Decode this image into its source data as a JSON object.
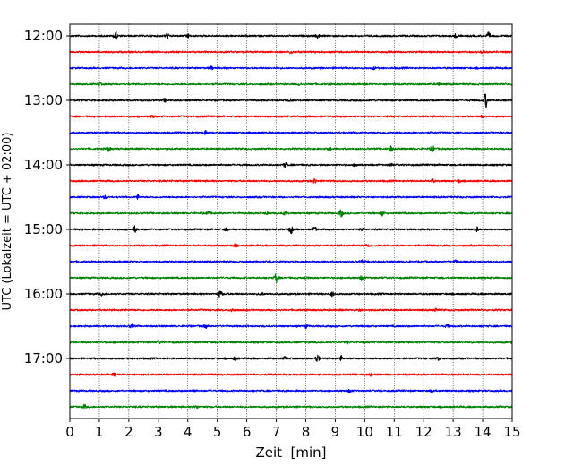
{
  "chart_data": {
    "type": "line",
    "subtype": "helicorder-seismogram",
    "xlabel": "Zeit  [min]",
    "ylabel": "UTC (Lokalzeit = UTC + 02:00)",
    "xlim": [
      0,
      15
    ],
    "x_ticks": [
      0,
      1,
      2,
      3,
      4,
      5,
      6,
      7,
      8,
      9,
      10,
      11,
      12,
      13,
      14,
      15
    ],
    "x_tick_labels": [
      "0",
      "1",
      "2",
      "3",
      "4",
      "5",
      "6",
      "7",
      "8",
      "9",
      "10",
      "11",
      "12",
      "13",
      "14",
      "15"
    ],
    "y_tick_labels": [
      "12:00",
      "13:00",
      "14:00",
      "15:00",
      "16:00",
      "17:00"
    ],
    "grid": "vertical dotted lines at each minute",
    "trace_interval_minutes": 15,
    "traces": [
      {
        "start": "12:00",
        "color": "#000000",
        "events": [
          [
            1.55,
            1.0
          ],
          [
            3.3,
            0.6
          ],
          [
            4.0,
            0.45
          ],
          [
            8.4,
            0.45
          ],
          [
            14.2,
            0.7
          ],
          [
            13.1,
            0.4
          ]
        ]
      },
      {
        "start": "12:15",
        "color": "#ff0000",
        "events": [
          [
            14.0,
            0.4
          ],
          [
            7.5,
            0.3
          ]
        ]
      },
      {
        "start": "12:30",
        "color": "#0000ff",
        "events": [
          [
            4.8,
            0.35
          ],
          [
            10.3,
            0.3
          ]
        ]
      },
      {
        "start": "12:45",
        "color": "#008000",
        "events": [
          [
            1.0,
            0.3
          ],
          [
            7.8,
            0.3
          ],
          [
            12.5,
            0.3
          ]
        ]
      },
      {
        "start": "13:00",
        "color": "#000000",
        "events": [
          [
            14.1,
            1.8
          ],
          [
            3.2,
            0.35
          ],
          [
            7.5,
            0.3
          ]
        ]
      },
      {
        "start": "13:15",
        "color": "#ff0000",
        "events": [
          [
            2.8,
            0.4
          ],
          [
            14.0,
            0.3
          ]
        ]
      },
      {
        "start": "13:30",
        "color": "#0000ff",
        "events": [
          [
            4.6,
            0.45
          ],
          [
            10.7,
            0.3
          ]
        ]
      },
      {
        "start": "13:45",
        "color": "#008000",
        "events": [
          [
            1.3,
            0.6
          ],
          [
            10.9,
            0.6
          ],
          [
            12.3,
            0.7
          ],
          [
            8.8,
            0.35
          ]
        ]
      },
      {
        "start": "14:00",
        "color": "#000000",
        "events": [
          [
            7.3,
            0.45
          ],
          [
            9.7,
            0.35
          ],
          [
            10.9,
            0.35
          ]
        ]
      },
      {
        "start": "14:15",
        "color": "#ff0000",
        "events": [
          [
            8.3,
            0.6
          ],
          [
            12.3,
            0.4
          ],
          [
            13.2,
            0.35
          ]
        ]
      },
      {
        "start": "14:30",
        "color": "#0000ff",
        "events": [
          [
            1.2,
            0.35
          ],
          [
            2.3,
            0.5
          ]
        ]
      },
      {
        "start": "14:45",
        "color": "#008000",
        "events": [
          [
            4.7,
            0.55
          ],
          [
            7.3,
            0.45
          ],
          [
            9.2,
            0.8
          ],
          [
            10.6,
            0.6
          ],
          [
            6.7,
            0.3
          ]
        ]
      },
      {
        "start": "15:00",
        "color": "#000000",
        "events": [
          [
            2.2,
            0.7
          ],
          [
            7.5,
            0.9
          ],
          [
            8.3,
            0.55
          ],
          [
            13.8,
            0.75
          ],
          [
            5.3,
            0.35
          ],
          [
            9.9,
            0.3
          ]
        ]
      },
      {
        "start": "15:15",
        "color": "#ff0000",
        "events": [
          [
            5.6,
            0.35
          ],
          [
            10.1,
            0.35
          ]
        ]
      },
      {
        "start": "15:30",
        "color": "#0000ff",
        "events": [
          [
            6.8,
            0.3
          ],
          [
            9.9,
            0.3
          ],
          [
            13.1,
            0.3
          ]
        ]
      },
      {
        "start": "15:45",
        "color": "#008000",
        "events": [
          [
            7.0,
            1.1
          ],
          [
            9.9,
            0.6
          ],
          [
            8.0,
            0.35
          ]
        ]
      },
      {
        "start": "16:00",
        "color": "#000000",
        "events": [
          [
            5.1,
            0.8
          ],
          [
            8.9,
            0.5
          ],
          [
            1.1,
            0.3
          ],
          [
            6.5,
            0.3
          ]
        ]
      },
      {
        "start": "16:15",
        "color": "#ff0000",
        "events": [
          [
            5.5,
            0.35
          ],
          [
            9.8,
            0.3
          ],
          [
            12.4,
            0.3
          ]
        ]
      },
      {
        "start": "16:30",
        "color": "#0000ff",
        "events": [
          [
            2.1,
            0.6
          ],
          [
            4.6,
            0.35
          ],
          [
            8.0,
            0.35
          ],
          [
            12.8,
            0.3
          ]
        ]
      },
      {
        "start": "16:45",
        "color": "#008000",
        "events": [
          [
            3.0,
            0.3
          ],
          [
            9.4,
            0.3
          ]
        ]
      },
      {
        "start": "17:00",
        "color": "#000000",
        "events": [
          [
            8.4,
            0.9
          ],
          [
            9.2,
            0.55
          ],
          [
            5.6,
            0.35
          ],
          [
            7.3,
            0.35
          ],
          [
            12.5,
            0.35
          ]
        ]
      },
      {
        "start": "17:15",
        "color": "#ff0000",
        "events": [
          [
            1.5,
            0.3
          ],
          [
            10.2,
            0.3
          ]
        ]
      },
      {
        "start": "17:30",
        "color": "#0000ff",
        "events": [
          [
            9.5,
            0.35
          ],
          [
            12.3,
            0.5
          ],
          [
            4.2,
            0.3
          ]
        ]
      },
      {
        "start": "17:45",
        "color": "#008000",
        "events": [
          [
            0.5,
            0.4
          ],
          [
            4.3,
            0.3
          ]
        ]
      }
    ]
  }
}
